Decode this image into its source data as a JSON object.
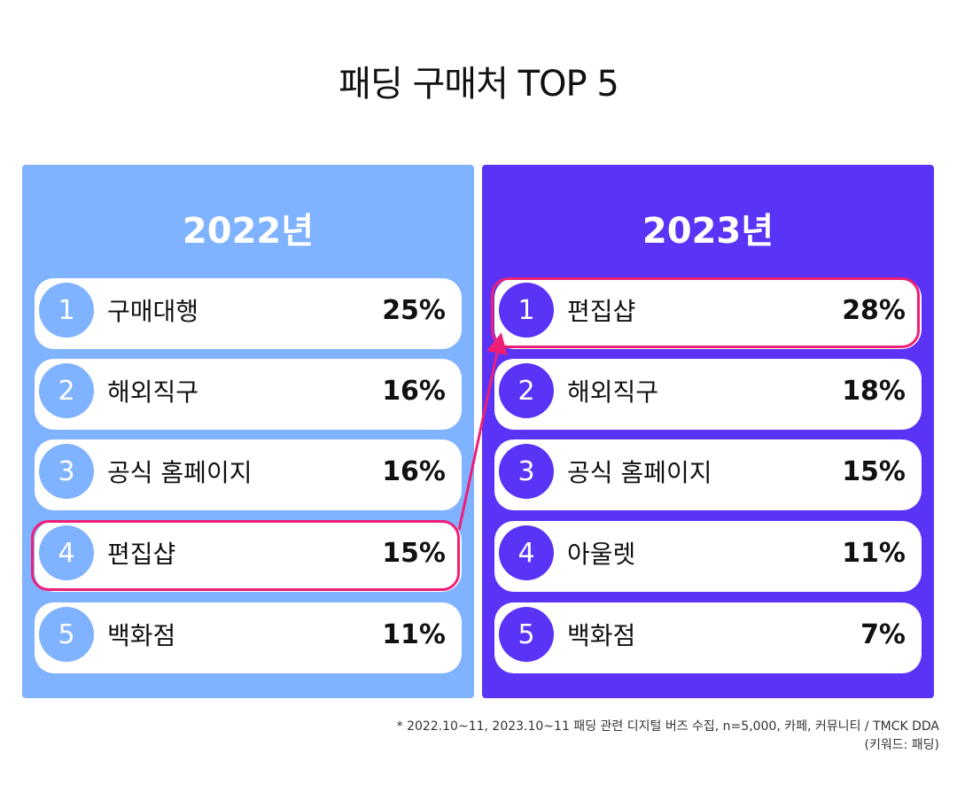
{
  "title": "패딩 구매처 TOP 5",
  "colors": {
    "panel_2022": "#7fb2ff",
    "panel_2023": "#5a33f6",
    "highlight": "#ee1f77"
  },
  "chart_data": [
    {
      "type": "table",
      "title": "2022년",
      "rows": [
        {
          "rank": "1",
          "channel": "구매대행",
          "value": 25,
          "label": "25%"
        },
        {
          "rank": "2",
          "channel": "해외직구",
          "value": 16,
          "label": "16%"
        },
        {
          "rank": "3",
          "channel": "공식 홈페이지",
          "value": 16,
          "label": "16%"
        },
        {
          "rank": "4",
          "channel": "편집샵",
          "value": 15,
          "label": "15%",
          "highlighted": true
        },
        {
          "rank": "5",
          "channel": "백화점",
          "value": 11,
          "label": "11%"
        }
      ]
    },
    {
      "type": "table",
      "title": "2023년",
      "rows": [
        {
          "rank": "1",
          "channel": "편집샵",
          "value": 28,
          "label": "28%",
          "highlighted": true
        },
        {
          "rank": "2",
          "channel": "해외직구",
          "value": 18,
          "label": "18%"
        },
        {
          "rank": "3",
          "channel": "공식 홈페이지",
          "value": 15,
          "label": "15%"
        },
        {
          "rank": "4",
          "channel": "아울렛",
          "value": 11,
          "label": "11%"
        },
        {
          "rank": "5",
          "channel": "백화점",
          "value": 7,
          "label": "7%"
        }
      ]
    }
  ],
  "footnote": {
    "line1": "* 2022.10~11, 2023.10~11 패딩 관련 디지털 버즈 수집, n=5,000, 카페, 커뮤니티 / TMCK DDA",
    "line2": "(키워드: 패딩)"
  }
}
